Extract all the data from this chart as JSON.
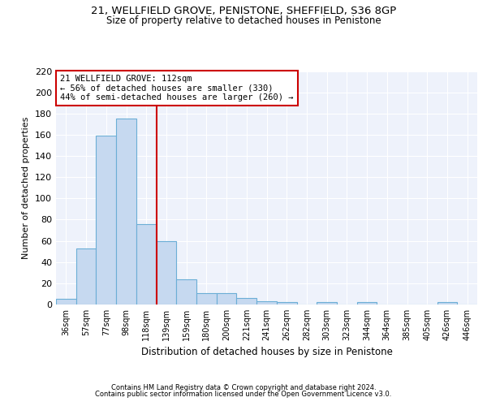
{
  "title1": "21, WELLFIELD GROVE, PENISTONE, SHEFFIELD, S36 8GP",
  "title2": "Size of property relative to detached houses in Penistone",
  "xlabel": "Distribution of detached houses by size in Penistone",
  "ylabel": "Number of detached properties",
  "footer1": "Contains HM Land Registry data © Crown copyright and database right 2024.",
  "footer2": "Contains public sector information licensed under the Open Government Licence v3.0.",
  "property_label": "21 WELLFIELD GROVE: 112sqm",
  "annotation_line1": "← 56% of detached houses are smaller (330)",
  "annotation_line2": "44% of semi-detached houses are larger (260) →",
  "bins": [
    36,
    57,
    77,
    98,
    118,
    139,
    159,
    180,
    200,
    221,
    241,
    262,
    282,
    303,
    323,
    344,
    364,
    385,
    405,
    426,
    446
  ],
  "values": [
    5,
    53,
    159,
    175,
    76,
    60,
    24,
    11,
    11,
    6,
    3,
    2,
    0,
    2,
    0,
    2,
    0,
    0,
    0,
    2,
    0
  ],
  "bar_color": "#c6d9f0",
  "bar_edge_color": "#6baed6",
  "red_line_color": "#cc0000",
  "background_color": "#eef2fb",
  "grid_color": "#ffffff",
  "annotation_box_edge": "#cc0000",
  "red_line_x": 4.5,
  "ylim": [
    0,
    220
  ],
  "yticks": [
    0,
    20,
    40,
    60,
    80,
    100,
    120,
    140,
    160,
    180,
    200,
    220
  ]
}
